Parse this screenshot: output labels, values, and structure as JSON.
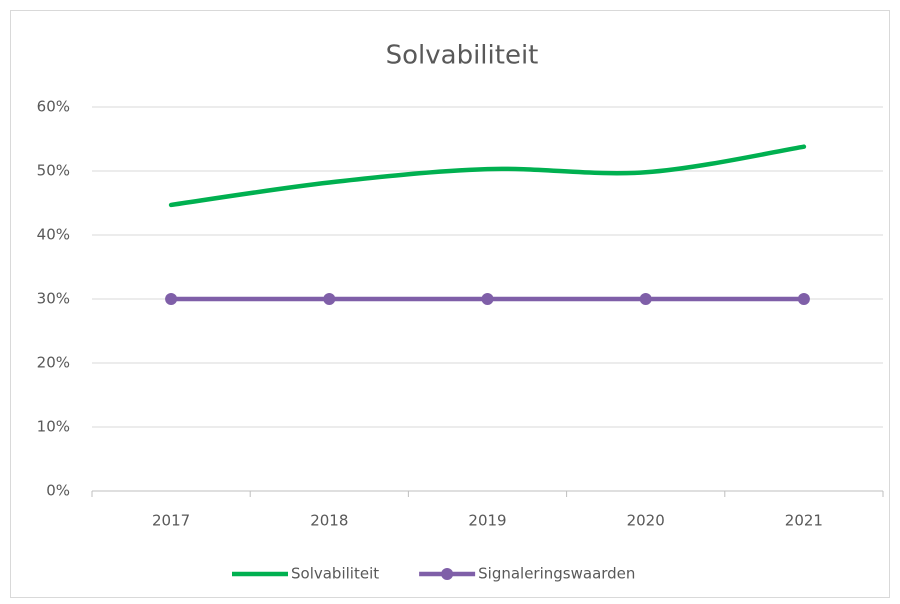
{
  "chart_data": {
    "type": "line",
    "title": "Solvabiliteit",
    "categories": [
      "2017",
      "2018",
      "2019",
      "2020",
      "2021"
    ],
    "series": [
      {
        "name": "Solvabiliteit",
        "color": "#00b050",
        "values": [
          44.7,
          48.2,
          50.3,
          49.8,
          53.8
        ],
        "smooth": true,
        "markers": false
      },
      {
        "name": "Signaleringswaarden",
        "color": "#7f5fa8",
        "values": [
          30,
          30,
          30,
          30,
          30
        ],
        "smooth": false,
        "markers": true
      }
    ],
    "ylim": [
      0,
      60
    ],
    "yticks": [
      {
        "value": 0,
        "label": "0%"
      },
      {
        "value": 10,
        "label": "10%"
      },
      {
        "value": 20,
        "label": "20%"
      },
      {
        "value": 30,
        "label": "30%"
      },
      {
        "value": 40,
        "label": "40%"
      },
      {
        "value": 50,
        "label": "50%"
      },
      {
        "value": 60,
        "label": "60%"
      }
    ],
    "grid": true,
    "legend": "bottom"
  }
}
